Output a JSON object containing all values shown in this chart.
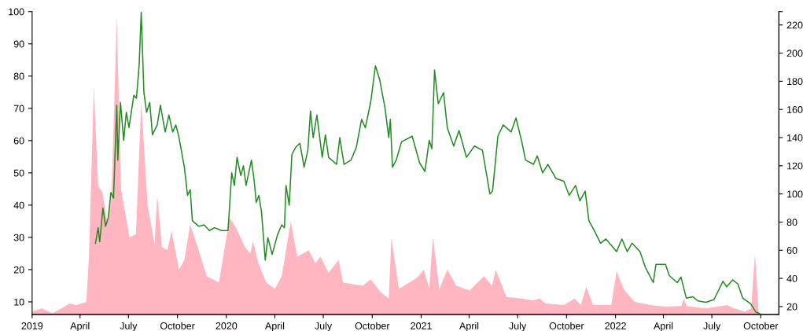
{
  "chart_data": {
    "type": "area",
    "xlim": [
      "2019-01-01",
      "2022-11-04"
    ],
    "xticks": [
      {
        "value": "2019-01-01",
        "label": "2019"
      },
      {
        "value": "2019-04-01",
        "label": "April"
      },
      {
        "value": "2019-07-01",
        "label": "July"
      },
      {
        "value": "2019-10-01",
        "label": "October"
      },
      {
        "value": "2020-01-01",
        "label": "2020"
      },
      {
        "value": "2020-04-01",
        "label": "April"
      },
      {
        "value": "2020-07-01",
        "label": "July"
      },
      {
        "value": "2020-10-01",
        "label": "October"
      },
      {
        "value": "2021-01-01",
        "label": "2021"
      },
      {
        "value": "2021-04-01",
        "label": "April"
      },
      {
        "value": "2021-07-01",
        "label": "July"
      },
      {
        "value": "2021-10-01",
        "label": "October"
      },
      {
        "value": "2022-01-01",
        "label": "2022"
      },
      {
        "value": "2022-04-01",
        "label": "April"
      },
      {
        "value": "2022-07-01",
        "label": "July"
      },
      {
        "value": "2022-10-01",
        "label": "October"
      }
    ],
    "ylim": [
      6.1,
      100
    ],
    "yticks": [
      10,
      20,
      30,
      40,
      50,
      60,
      70,
      80,
      90,
      100
    ],
    "y2lim": [
      14.4,
      229.5
    ],
    "y2ticks": [
      20,
      40,
      60,
      80,
      100,
      120,
      140,
      160,
      180,
      200,
      220,
      {
        "value": 229.5,
        "label": null
      }
    ],
    "grid": false,
    "legend": false,
    "series": [
      {
        "color": "#ffb6c1",
        "x": [
          "2019-01-01",
          "2019-01-19",
          "2019-02-08",
          "2019-02-25",
          "2019-03-12",
          "2019-03-25",
          "2019-04-13",
          "2019-04-18",
          "2019-04-27",
          "2019-05-05",
          "2019-05-13",
          "2019-05-22",
          "2019-05-30",
          "2019-06-09",
          "2019-06-17",
          "2019-07-03",
          "2019-07-15",
          "2019-07-25",
          "2019-08-06",
          "2019-08-19",
          "2019-08-24",
          "2019-09-02",
          "2019-09-12",
          "2019-09-20",
          "2019-10-04",
          "2019-10-14",
          "2019-10-25",
          "2019-11-10",
          "2019-11-25",
          "2019-12-18",
          "2020-01-07",
          "2020-01-19",
          "2020-02-05",
          "2020-02-15",
          "2020-02-20",
          "2020-03-01",
          "2020-03-16",
          "2020-04-01",
          "2020-04-14",
          "2020-05-01",
          "2020-05-13",
          "2020-06-04",
          "2020-06-16",
          "2020-06-26",
          "2020-07-11",
          "2020-07-30",
          "2020-08-07",
          "2020-09-13",
          "2020-09-28",
          "2020-10-17",
          "2020-11-01",
          "2020-11-06",
          "2020-11-20",
          "2020-12-24",
          "2021-01-06",
          "2021-01-16",
          "2021-01-23",
          "2021-02-04",
          "2021-02-19",
          "2021-03-08",
          "2021-04-02",
          "2021-04-29",
          "2021-05-14",
          "2021-05-21",
          "2021-06-10",
          "2021-07-09",
          "2021-07-29",
          "2021-08-12",
          "2021-08-22",
          "2021-09-26",
          "2021-10-16",
          "2021-10-28",
          "2021-11-07",
          "2021-11-20",
          "2021-12-24",
          "2022-01-03",
          "2022-01-18",
          "2022-02-06",
          "2022-03-08",
          "2022-04-05",
          "2022-05-05",
          "2022-05-09",
          "2022-05-15",
          "2022-06-19",
          "2022-07-30",
          "2022-08-12",
          "2022-09-01",
          "2022-09-13",
          "2022-09-20",
          "2022-09-27"
        ],
        "values": [
          7,
          8,
          6.5,
          8,
          9.5,
          9,
          10,
          25,
          77,
          46,
          44,
          35,
          42,
          98,
          45,
          30,
          31,
          72,
          40,
          28,
          43,
          27,
          26,
          32,
          20,
          23,
          34,
          26,
          18,
          16,
          36,
          33,
          27,
          25,
          29,
          22,
          16,
          14,
          18,
          35,
          24,
          26,
          22,
          24,
          19,
          23,
          16,
          15,
          17,
          13,
          11,
          30,
          14,
          17.5,
          20,
          14,
          30,
          14,
          20,
          15,
          13.5,
          18,
          15,
          20,
          11.5,
          11,
          10.5,
          11,
          9.5,
          9,
          11,
          9,
          14.6,
          9,
          9,
          19.5,
          13.5,
          10,
          9,
          8.5,
          8.7,
          11,
          8.7,
          8,
          9,
          8,
          7,
          8,
          25,
          6.5
        ]
      },
      {
        "type": "line",
        "axis": "y2",
        "color": "#228b22",
        "x": [
          "2019-04-30",
          "2019-05-05",
          "2019-05-08",
          "2019-05-14",
          "2019-05-19",
          "2019-05-24",
          "2019-05-29",
          "2019-06-03",
          "2019-06-09",
          "2019-06-11",
          "2019-06-16",
          "2019-06-22",
          "2019-06-27",
          "2019-07-02",
          "2019-07-11",
          "2019-07-16",
          "2019-07-21",
          "2019-07-25",
          "2019-07-30",
          "2019-08-04",
          "2019-08-10",
          "2019-08-15",
          "2019-08-24",
          "2019-08-30",
          "2019-09-08",
          "2019-09-15",
          "2019-09-22",
          "2019-09-28",
          "2019-10-04",
          "2019-10-14",
          "2019-10-20",
          "2019-10-25",
          "2019-10-29",
          "2019-11-10",
          "2019-11-20",
          "2019-11-30",
          "2019-12-10",
          "2019-12-23",
          "2020-01-04",
          "2020-01-11",
          "2020-01-16",
          "2020-01-21",
          "2020-01-28",
          "2020-02-02",
          "2020-02-07",
          "2020-02-17",
          "2020-02-22",
          "2020-02-26",
          "2020-03-02",
          "2020-03-07",
          "2020-03-14",
          "2020-03-19",
          "2020-03-27",
          "2020-04-06",
          "2020-04-14",
          "2020-04-19",
          "2020-04-22",
          "2020-04-28",
          "2020-05-03",
          "2020-05-10",
          "2020-05-18",
          "2020-05-26",
          "2020-06-02",
          "2020-06-07",
          "2020-06-12",
          "2020-06-19",
          "2020-06-29",
          "2020-07-05",
          "2020-07-11",
          "2020-07-26",
          "2020-08-01",
          "2020-08-09",
          "2020-08-22",
          "2020-09-01",
          "2020-09-11",
          "2020-09-18",
          "2020-09-28",
          "2020-10-07",
          "2020-10-15",
          "2020-10-25",
          "2020-11-01",
          "2020-11-04",
          "2020-11-08",
          "2020-11-15",
          "2020-11-25",
          "2020-12-15",
          "2020-12-29",
          "2021-01-08",
          "2021-01-16",
          "2021-01-21",
          "2021-01-26",
          "2021-02-02",
          "2021-02-12",
          "2021-02-19",
          "2021-03-03",
          "2021-03-13",
          "2021-03-27",
          "2021-04-11",
          "2021-04-26",
          "2021-05-10",
          "2021-05-15",
          "2021-05-25",
          "2021-06-04",
          "2021-06-19",
          "2021-06-28",
          "2021-07-09",
          "2021-07-16",
          "2021-07-31",
          "2021-08-07",
          "2021-08-17",
          "2021-08-27",
          "2021-09-11",
          "2021-09-26",
          "2021-10-06",
          "2021-10-18",
          "2021-10-26",
          "2021-11-05",
          "2021-11-12",
          "2021-11-22",
          "2021-12-04",
          "2021-12-14",
          "2022-01-03",
          "2022-01-13",
          "2022-01-23",
          "2022-02-01",
          "2022-02-16",
          "2022-02-26",
          "2022-03-13",
          "2022-03-18",
          "2022-04-05",
          "2022-04-12",
          "2022-04-27",
          "2022-05-04",
          "2022-05-14",
          "2022-05-26",
          "2022-06-05",
          "2022-06-20",
          "2022-07-05",
          "2022-07-22",
          "2022-07-29",
          "2022-08-09",
          "2022-08-19",
          "2022-08-28",
          "2022-09-12",
          "2022-09-22",
          "2022-09-29"
        ],
        "values": [
          65,
          76,
          66,
          90,
          77,
          83,
          101,
          97,
          163,
          124,
          165,
          138,
          158,
          147,
          170,
          168,
          191,
          229,
          172,
          158,
          165,
          142,
          149,
          163,
          144,
          156,
          144,
          149,
          140,
          119,
          99,
          103,
          81,
          77,
          78,
          74,
          76,
          74,
          74,
          115,
          106,
          126,
          113,
          120,
          106,
          124,
          110,
          94,
          99,
          87,
          53,
          69,
          57,
          71,
          78,
          76,
          106,
          92,
          128,
          133,
          136,
          119,
          131,
          159,
          140,
          156,
          126,
          142,
          126,
          121,
          140,
          121,
          124,
          133,
          153,
          147,
          165,
          191,
          181,
          161,
          140,
          153,
          119,
          124,
          137,
          141,
          122,
          116,
          138,
          132,
          188,
          164,
          172,
          147,
          134,
          145,
          126,
          134,
          131,
          100,
          102,
          141,
          149,
          144,
          154,
          137,
          124,
          121,
          127,
          115,
          121,
          111,
          109,
          99,
          106,
          95,
          102,
          81,
          74,
          65,
          68,
          59,
          68,
          59,
          65,
          59,
          48,
          37,
          50,
          50,
          42,
          37,
          41,
          26,
          27,
          24,
          23,
          25,
          38,
          34,
          39,
          36,
          26,
          22,
          16,
          15
        ]
      }
    ]
  }
}
